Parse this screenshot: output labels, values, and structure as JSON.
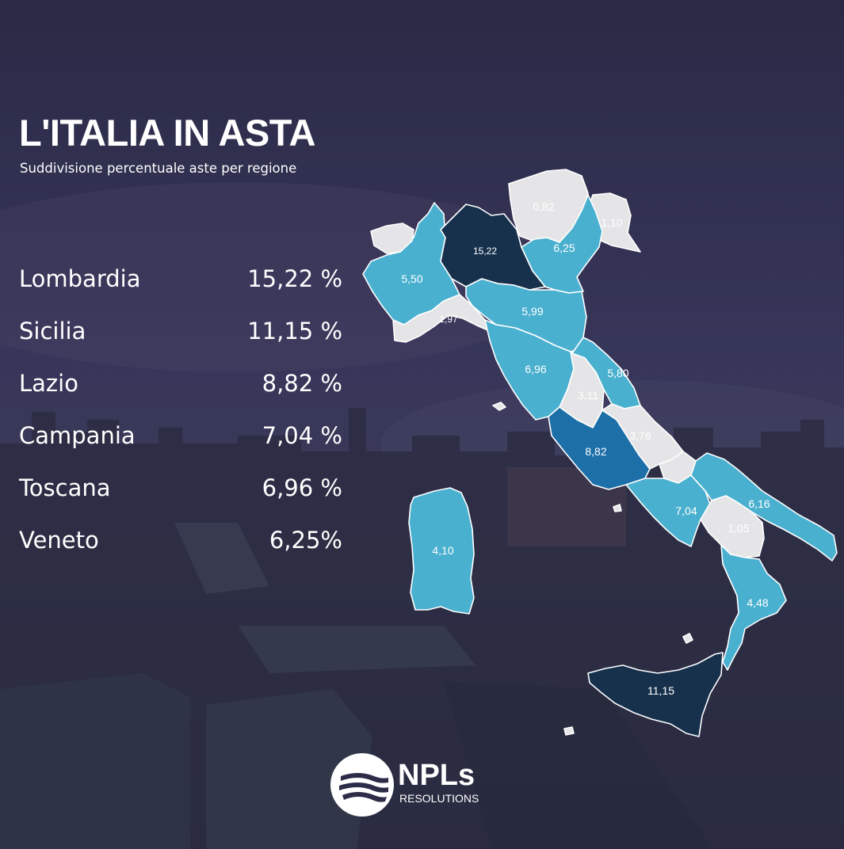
{
  "title": "L'ITALIA IN ASTA",
  "subtitle": "Suddivisione percentuale aste per regione",
  "ranking": [
    {
      "name": "Lombardia",
      "value": "15,22 %"
    },
    {
      "name": "Sicilia",
      "value": "11,15 %"
    },
    {
      "name": "Lazio",
      "value": "8,82 %"
    },
    {
      "name": "Campania",
      "value": "7,04 %"
    },
    {
      "name": "Toscana",
      "value": "6,96 %"
    },
    {
      "name": "Veneto",
      "value": "6,25%"
    }
  ],
  "map": {
    "colors": {
      "high": "#17314d",
      "mid": "#1d6fa8",
      "medium": "#4ab0cf",
      "low": "#e5e5e7"
    },
    "labels": {
      "piemonte": "5,50",
      "lombardia": "15,22",
      "trentino": "0,82",
      "friuli": "1,10",
      "veneto": "6,25",
      "liguria": "1,97",
      "emilia": "5,99",
      "toscana": "6,96",
      "umbria": "3,11",
      "marche": "5,80",
      "lazio": "8,82",
      "abruzzo": "3,76",
      "campania": "7,04",
      "puglia": "6,16",
      "basilicata": "1,05",
      "calabria": "4,48",
      "sardegna": "4,10",
      "sicilia": "11,15"
    }
  },
  "logo": {
    "name": "NPLs",
    "sub": "RESOLUTIONS"
  }
}
